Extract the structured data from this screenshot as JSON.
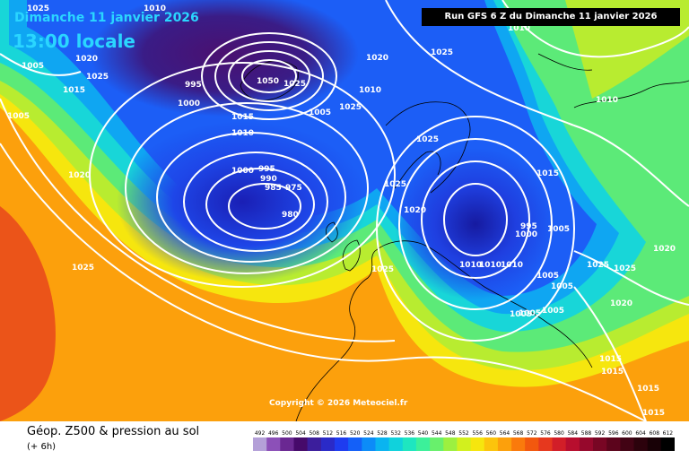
{
  "map": {
    "date_label": "Dimanche 11 janvier 2026",
    "time_label": "13:00 locale",
    "run_label": "Run GFS 6 Z du Dimanche 11 janvier 2026",
    "copyright": "Copyright © 2026 Meteociel.fr",
    "legend_title": "Géop. Z500 & pression au sol",
    "legend_subtitle": "(+ 6h)"
  },
  "colors": {
    "title_text": "#2ad6ff",
    "banner_bg": "#000000",
    "isobar": "#ffffff"
  },
  "isobar_labels": [
    {
      "text": "1025"
    },
    {
      "text": "1010"
    },
    {
      "text": "1010"
    },
    {
      "text": "1005"
    },
    {
      "text": "1020"
    },
    {
      "text": "1015"
    },
    {
      "text": "1025"
    },
    {
      "text": "1005"
    },
    {
      "text": "995"
    },
    {
      "text": "1000"
    },
    {
      "text": "1050"
    },
    {
      "text": "1025"
    },
    {
      "text": "1015"
    },
    {
      "text": "1010"
    },
    {
      "text": "1000"
    },
    {
      "text": "995"
    },
    {
      "text": "990"
    },
    {
      "text": "985"
    },
    {
      "text": "975"
    },
    {
      "text": "980"
    },
    {
      "text": "1020"
    },
    {
      "text": "1010"
    },
    {
      "text": "1005"
    },
    {
      "text": "1025"
    },
    {
      "text": "1025"
    },
    {
      "text": "1020"
    },
    {
      "text": "1025"
    },
    {
      "text": "1010"
    },
    {
      "text": "1010"
    },
    {
      "text": "1010"
    },
    {
      "text": "1025"
    },
    {
      "text": "1005"
    },
    {
      "text": "1020"
    },
    {
      "text": "1005"
    },
    {
      "text": "1025"
    },
    {
      "text": "1025"
    },
    {
      "text": "1010"
    },
    {
      "text": "1015"
    },
    {
      "text": "995"
    },
    {
      "text": "1000"
    },
    {
      "text": "1005"
    },
    {
      "text": "1005"
    },
    {
      "text": "1005"
    },
    {
      "text": "1005"
    },
    {
      "text": "1025"
    },
    {
      "text": "1025"
    },
    {
      "text": "1020"
    },
    {
      "text": "1020"
    },
    {
      "text": "1015"
    },
    {
      "text": "1015"
    },
    {
      "text": "1015"
    },
    {
      "text": "1015"
    }
  ],
  "legend_scale": {
    "ticks": [
      "492",
      "496",
      "500",
      "504",
      "508",
      "512",
      "516",
      "520",
      "524",
      "528",
      "532",
      "536",
      "540",
      "544",
      "548",
      "552",
      "556",
      "560",
      "564",
      "568",
      "572",
      "576",
      "580",
      "584",
      "588",
      "592",
      "596",
      "600",
      "604",
      "608",
      "612"
    ],
    "colors": [
      "#b4a0d8",
      "#8c50b8",
      "#6a2892",
      "#460a6a",
      "#3c1e9c",
      "#2a2ac8",
      "#1e3cf0",
      "#1460f8",
      "#0c8cf8",
      "#0ab4f0",
      "#10d2dc",
      "#1ee6c0",
      "#3cf09a",
      "#68f06c",
      "#9cf040",
      "#d2f01e",
      "#f6e60e",
      "#fcc40c",
      "#fca00c",
      "#fa7a0c",
      "#f2580e",
      "#e6381e",
      "#d21e28",
      "#b80e2e",
      "#96082c",
      "#780624",
      "#5c041c",
      "#420314",
      "#2c020c",
      "#180106",
      "#000000"
    ]
  }
}
